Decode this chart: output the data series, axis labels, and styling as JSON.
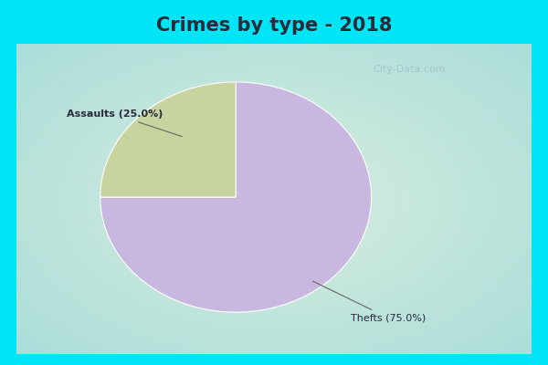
{
  "title": "Crimes by type - 2018",
  "slices": [
    {
      "label": "Thefts (75.0%)",
      "value": 75.0,
      "color": "#c8b8e0"
    },
    {
      "label": "Assaults (25.0%)",
      "value": 25.0,
      "color": "#c8d4a0"
    }
  ],
  "background_color_outer": "#00e5f5",
  "background_color_inner_center": "#d8ede0",
  "background_color_inner_edge": "#aaddd8",
  "title_fontsize": 15,
  "title_fontweight": "bold",
  "title_color": "#2a2a3a",
  "watermark_text": "City-Data.com",
  "assaults_label": "Assaults (25.0%)",
  "thefts_label": "Thefts (75.0%)"
}
